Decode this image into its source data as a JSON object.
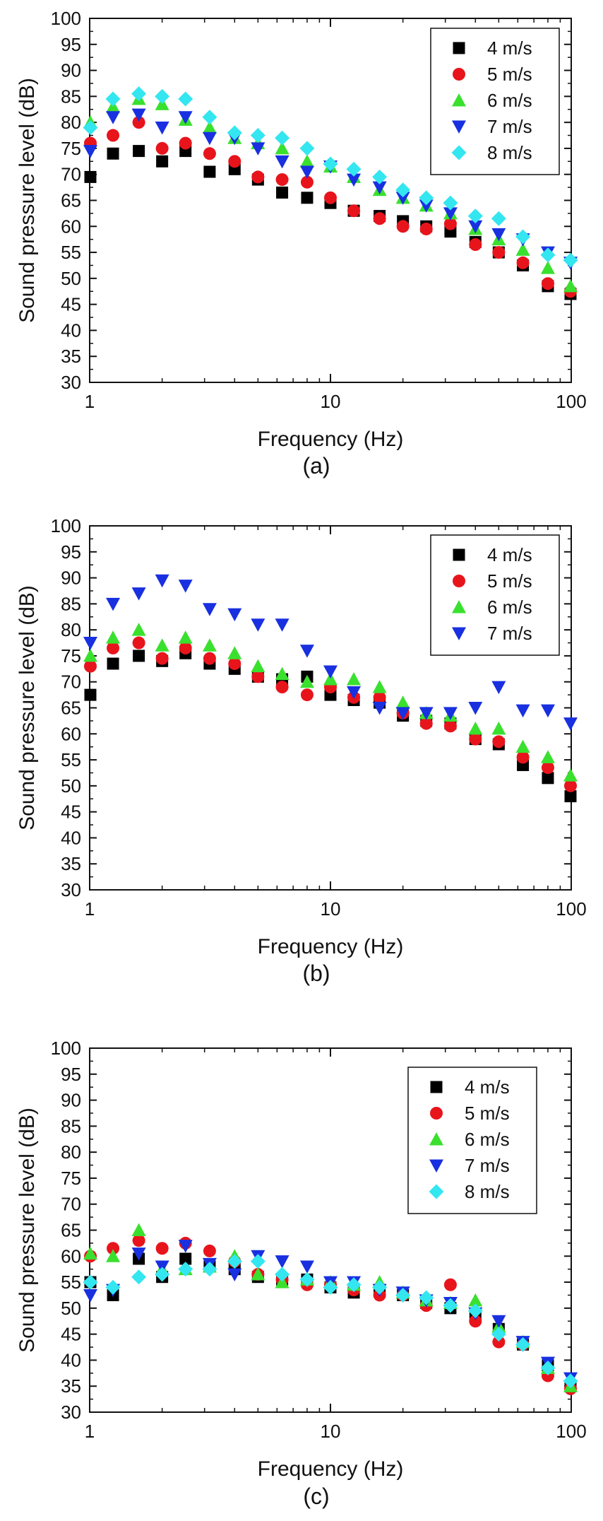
{
  "chart_data": [
    {
      "type": "scatter",
      "caption": "(a)",
      "xlabel": "Frequency (Hz)",
      "ylabel": "Sound pressure level (dB)",
      "xscale": "log",
      "xlim": [
        1,
        100
      ],
      "ylim": [
        30,
        100
      ],
      "x_ticks": [
        "1",
        "10",
        "100"
      ],
      "y_ticks": [
        "30",
        "35",
        "40",
        "45",
        "50",
        "55",
        "60",
        "65",
        "70",
        "75",
        "80",
        "85",
        "90",
        "95",
        "100"
      ],
      "legend_position": "top-right",
      "x": [
        1,
        1.25,
        1.6,
        2,
        2.5,
        3.15,
        4,
        5,
        6.3,
        8,
        10,
        12.5,
        16,
        20,
        25,
        31.5,
        40,
        50,
        63,
        80,
        100
      ],
      "series": [
        {
          "name": "4 m/s",
          "marker": "square",
          "color": "#000000",
          "values": [
            69.5,
            74,
            74.5,
            72.5,
            74.5,
            70.5,
            71,
            69,
            66.5,
            65.5,
            64.5,
            63,
            62,
            61,
            60,
            59,
            57,
            55,
            52.5,
            48.5,
            47
          ]
        },
        {
          "name": "5 m/s",
          "marker": "circle",
          "color": "#e8141c",
          "values": [
            76,
            77.5,
            80,
            75,
            76,
            74,
            72.5,
            69.5,
            69,
            68.5,
            65.5,
            63,
            61.5,
            60,
            59.5,
            60.5,
            56.5,
            55,
            53,
            49,
            47.5
          ]
        },
        {
          "name": "6 m/s",
          "marker": "triangle-up",
          "color": "#3ae02e",
          "values": [
            80,
            83,
            84.5,
            83.5,
            80.5,
            79,
            77,
            76,
            75,
            72.5,
            71.5,
            69.5,
            67,
            65.5,
            64,
            62.5,
            59.5,
            57.5,
            55.5,
            52,
            48.5
          ]
        },
        {
          "name": "7 m/s",
          "marker": "triangle-down",
          "color": "#1830e0",
          "values": [
            74.5,
            81,
            81.5,
            79,
            81,
            77,
            77,
            75,
            72.5,
            70.5,
            71.5,
            69,
            67.5,
            65.5,
            64,
            62.5,
            60,
            58.5,
            57.5,
            55,
            53
          ]
        },
        {
          "name": "8 m/s",
          "marker": "diamond",
          "color": "#33e6f0",
          "values": [
            79,
            84.5,
            85.5,
            85,
            84.5,
            81,
            78,
            77.5,
            77,
            75,
            72,
            71,
            69.5,
            67,
            65.5,
            64.5,
            62,
            61.5,
            58,
            54.5,
            53.5
          ]
        }
      ]
    },
    {
      "type": "scatter",
      "caption": "(b)",
      "xlabel": "Frequency (Hz)",
      "ylabel": "Sound pressure level (dB)",
      "xscale": "log",
      "xlim": [
        1,
        100
      ],
      "ylim": [
        30,
        100
      ],
      "x_ticks": [
        "1",
        "10",
        "100"
      ],
      "y_ticks": [
        "30",
        "35",
        "40",
        "45",
        "50",
        "55",
        "60",
        "65",
        "70",
        "75",
        "80",
        "85",
        "90",
        "95",
        "100"
      ],
      "legend_position": "top-right",
      "x": [
        1,
        1.25,
        1.6,
        2,
        2.5,
        3.15,
        4,
        5,
        6.3,
        8,
        10,
        12.5,
        16,
        20,
        25,
        31.5,
        40,
        50,
        63,
        80,
        100
      ],
      "series": [
        {
          "name": "4 m/s",
          "marker": "square",
          "color": "#000000",
          "values": [
            67.5,
            73.5,
            75,
            74,
            75.5,
            73.5,
            72.5,
            71,
            70.5,
            71,
            67.5,
            66.5,
            66,
            63.5,
            62.5,
            62,
            59,
            58,
            54,
            51.5,
            48
          ]
        },
        {
          "name": "5 m/s",
          "marker": "circle",
          "color": "#e8141c",
          "values": [
            73,
            76.5,
            77.5,
            74.5,
            76.5,
            74.5,
            73.5,
            71,
            69,
            67.5,
            69,
            67,
            67,
            64,
            62,
            61.5,
            59,
            58.5,
            55.5,
            53.5,
            50
          ]
        },
        {
          "name": "6 m/s",
          "marker": "triangle-up",
          "color": "#3ae02e",
          "values": [
            75,
            78.5,
            80,
            77,
            78.5,
            77,
            75.5,
            73,
            71.5,
            70,
            70.5,
            70.5,
            69,
            66,
            64,
            63.5,
            61,
            61,
            57.5,
            55.5,
            52
          ]
        },
        {
          "name": "7 m/s",
          "marker": "triangle-down",
          "color": "#1830e0",
          "values": [
            77.5,
            85,
            87,
            89.5,
            88.5,
            84,
            83,
            81,
            81,
            76,
            72,
            68,
            65,
            64,
            64,
            64,
            65,
            69,
            64.5,
            64.5,
            62
          ]
        }
      ]
    },
    {
      "type": "scatter",
      "caption": "(c)",
      "xlabel": "Frequency (Hz)",
      "ylabel": "Sound pressure level (dB)",
      "xscale": "log",
      "xlim": [
        1,
        100
      ],
      "ylim": [
        30,
        100
      ],
      "x_ticks": [
        "1",
        "10",
        "100"
      ],
      "y_ticks": [
        "30",
        "35",
        "40",
        "45",
        "50",
        "55",
        "60",
        "65",
        "70",
        "75",
        "80",
        "85",
        "90",
        "95",
        "100"
      ],
      "legend_position": "top-right",
      "x": [
        1,
        1.25,
        1.6,
        2,
        2.5,
        3.15,
        4,
        5,
        6.3,
        8,
        10,
        12.5,
        16,
        20,
        25,
        31.5,
        40,
        50,
        63,
        80,
        100
      ],
      "series": [
        {
          "name": "4 m/s",
          "marker": "square",
          "color": "#000000",
          "values": [
            55,
            52.5,
            59.5,
            56,
            59.5,
            58,
            57.5,
            56,
            55.5,
            55.5,
            54,
            53,
            53.5,
            52.5,
            51,
            50,
            48.5,
            46,
            43,
            39,
            35
          ]
        },
        {
          "name": "5 m/s",
          "marker": "circle",
          "color": "#e8141c",
          "values": [
            60,
            61.5,
            63,
            61.5,
            62.5,
            61,
            59,
            56.5,
            55.5,
            54.5,
            54.5,
            53.5,
            52.5,
            52.5,
            50.5,
            54.5,
            47.5,
            43.5,
            43,
            37,
            34.5
          ]
        },
        {
          "name": "6 m/s",
          "marker": "triangle-up",
          "color": "#3ae02e",
          "values": [
            60.5,
            60,
            65,
            57.5,
            57.5,
            58,
            60,
            56.5,
            55,
            55.5,
            55,
            54.5,
            55,
            53,
            51.5,
            51,
            51.5,
            46.5,
            43.5,
            38.5,
            35
          ]
        },
        {
          "name": "7 m/s",
          "marker": "triangle-down",
          "color": "#1830e0",
          "values": [
            52.5,
            53.5,
            60.5,
            58,
            62,
            58.5,
            56.5,
            60,
            59,
            58,
            55,
            55,
            53.5,
            53,
            51.5,
            51,
            49,
            47.5,
            43.5,
            39.5,
            36.5
          ]
        },
        {
          "name": "8 m/s",
          "marker": "diamond",
          "color": "#33e6f0",
          "values": [
            55,
            54,
            56,
            56.5,
            57.5,
            57.5,
            59,
            59,
            56.5,
            55.5,
            54,
            54.5,
            54,
            52.5,
            52,
            50.5,
            49.5,
            45,
            43,
            38.5,
            36
          ]
        }
      ]
    }
  ]
}
